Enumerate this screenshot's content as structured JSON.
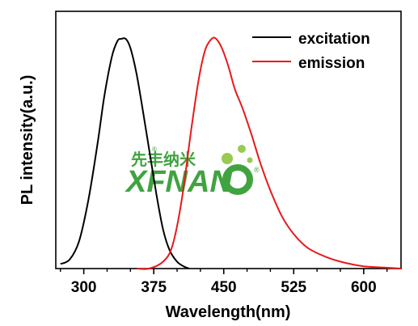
{
  "chart_data": {
    "type": "line",
    "xlabel": "Wavelength(nm)",
    "ylabel": "PL intensity(a.u.)",
    "xlim": [
      270,
      640
    ],
    "ylim": [
      0,
      1.12
    ],
    "xticks": [
      300,
      375,
      450,
      525,
      600
    ],
    "yticks_shown": false,
    "legend_position": "top-right",
    "series": [
      {
        "name": "excitation",
        "color": "#000000",
        "x": [
          275,
          285,
          295,
          305,
          315,
          322,
          330,
          336,
          340,
          345,
          350,
          356,
          362,
          370,
          378,
          385,
          392,
          400,
          407,
          413
        ],
        "y": [
          0.02,
          0.04,
          0.12,
          0.3,
          0.55,
          0.75,
          0.92,
          0.99,
          1.0,
          1.0,
          0.96,
          0.86,
          0.72,
          0.52,
          0.32,
          0.17,
          0.08,
          0.03,
          0.01,
          0.0
        ]
      },
      {
        "name": "emission",
        "color": "#e8191c",
        "x": [
          357,
          370,
          385,
          395,
          405,
          415,
          423,
          430,
          437,
          442,
          448,
          455,
          462,
          470,
          480,
          490,
          500,
          512,
          525,
          540,
          560,
          580,
          600,
          620,
          640
        ],
        "y": [
          0.0,
          0.0,
          0.03,
          0.1,
          0.3,
          0.6,
          0.82,
          0.95,
          1.0,
          1.0,
          0.96,
          0.88,
          0.78,
          0.7,
          0.58,
          0.45,
          0.34,
          0.23,
          0.15,
          0.09,
          0.05,
          0.025,
          0.01,
          0.005,
          0.0
        ]
      }
    ]
  },
  "watermark": {
    "cn": "先丰纳米",
    "en": "XFNAN",
    "mark": "®",
    "color": "#2c9a2c"
  }
}
